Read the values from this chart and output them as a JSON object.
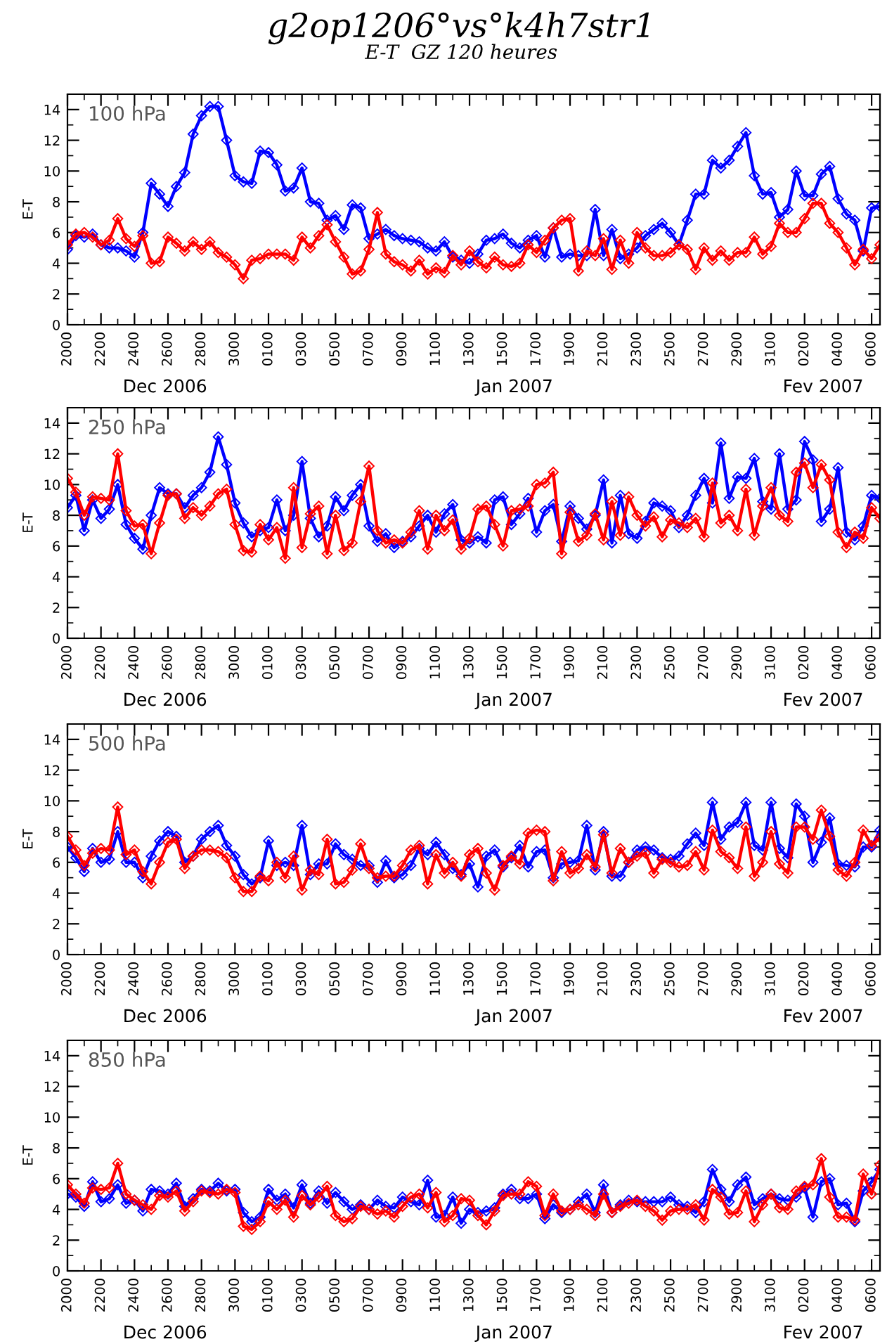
{
  "chart_data": [
    {
      "type": "line",
      "title": "g2op1206°vs°k4h7str1",
      "subtitle": "E-T  GZ 120 heures",
      "ylabel": "E-T",
      "annotations": [
        "100 hPa",
        "Dec 2006",
        "Jan 2007",
        "Fev 2007"
      ],
      "marker": "diamond",
      "grid": false,
      "ylim": [
        0,
        15
      ],
      "yticks": [
        0,
        2,
        4,
        6,
        8,
        10,
        12,
        14
      ],
      "categories": [
        "2000",
        null,
        null,
        null,
        "2200",
        null,
        null,
        null,
        "2400",
        null,
        null,
        null,
        "2600",
        null,
        null,
        null,
        "2800",
        null,
        null,
        null,
        "3000",
        null,
        null,
        null,
        "0100",
        null,
        null,
        null,
        "0300",
        null,
        null,
        null,
        "0500",
        null,
        null,
        null,
        "0700",
        null,
        null,
        null,
        "0900",
        null,
        null,
        null,
        "1100",
        null,
        null,
        null,
        "1300",
        null,
        null,
        null,
        "1500",
        null,
        null,
        null,
        "1700",
        null,
        null,
        null,
        "1900",
        null,
        null,
        null,
        "2100",
        null,
        null,
        null,
        "2300",
        null,
        null,
        null,
        "2500",
        null,
        null,
        null,
        "2700",
        null,
        null,
        null,
        "2900",
        null,
        null,
        null,
        "3100",
        null,
        null,
        null,
        "0200",
        null,
        null,
        null,
        "0400",
        null,
        null,
        null,
        "0600",
        null
      ],
      "series": [
        {
          "color": "#0000ff",
          "values": [
            4.9,
            5.8,
            5.7,
            5.9,
            5.2,
            5.0,
            5.0,
            4.8,
            4.4,
            6.0,
            9.2,
            8.5,
            7.7,
            9.0,
            9.9,
            12.4,
            13.6,
            14.2,
            14.2,
            12.0,
            9.7,
            9.3,
            9.2,
            11.3,
            11.2,
            10.4,
            8.7,
            8.9,
            10.2,
            8.0,
            7.9,
            6.8,
            7.1,
            6.2,
            7.8,
            7.6,
            5.6,
            5.9,
            6.2,
            5.8,
            5.6,
            5.5,
            5.4,
            5.0,
            4.8,
            5.4,
            4.4,
            4.2,
            4.0,
            4.6,
            5.5,
            5.6,
            5.9,
            5.3,
            5.0,
            5.5,
            5.8,
            4.4,
            6.3,
            4.4,
            4.6,
            4.5,
            4.5,
            7.5,
            4.5,
            6.2,
            4.3,
            4.6,
            5.0,
            5.8,
            6.2,
            6.6,
            6.0,
            5.2,
            6.8,
            8.5,
            8.5,
            10.7,
            10.2,
            10.7,
            11.6,
            12.5,
            9.7,
            8.5,
            8.6,
            7.0,
            7.5,
            10.0,
            8.4,
            8.4,
            9.8,
            10.3,
            8.2,
            7.2,
            6.8,
            4.8,
            7.6,
            7.7
          ]
        },
        {
          "color": "#ff0000",
          "values": [
            5.2,
            5.9,
            6.0,
            5.7,
            5.2,
            5.5,
            6.9,
            5.6,
            5.1,
            5.8,
            4.0,
            4.1,
            5.7,
            5.3,
            4.8,
            5.4,
            4.9,
            5.4,
            4.7,
            4.4,
            3.9,
            3.0,
            4.2,
            4.3,
            4.6,
            4.6,
            4.6,
            4.2,
            5.7,
            5.0,
            5.8,
            6.5,
            5.4,
            4.4,
            3.3,
            3.5,
            4.9,
            7.3,
            4.6,
            4.1,
            3.9,
            3.5,
            4.2,
            3.3,
            3.7,
            3.4,
            4.5,
            3.9,
            4.8,
            4.1,
            3.7,
            4.4,
            3.9,
            3.8,
            4.0,
            5.2,
            4.7,
            5.5,
            6.3,
            6.8,
            6.9,
            3.5,
            4.8,
            4.5,
            5.6,
            3.6,
            5.5,
            4.0,
            6.0,
            5.0,
            4.5,
            4.5,
            4.7,
            5.2,
            4.9,
            3.6,
            5.0,
            4.2,
            4.8,
            4.2,
            4.7,
            4.7,
            5.7,
            4.6,
            5.1,
            6.6,
            6.0,
            6.0,
            6.9,
            7.9,
            7.9,
            6.6,
            6.0,
            5.0,
            3.9,
            4.9,
            4.3,
            5.2
          ]
        }
      ]
    },
    {
      "type": "line",
      "ylabel": "E-T",
      "annotations": [
        "250 hPa",
        "Dec 2006",
        "Jan 2007",
        "Fev 2007"
      ],
      "marker": "diamond",
      "grid": false,
      "ylim": [
        0,
        15
      ],
      "yticks": [
        0,
        2,
        4,
        6,
        8,
        10,
        12,
        14
      ],
      "categories": [
        "2000",
        null,
        null,
        null,
        "2200",
        null,
        null,
        null,
        "2400",
        null,
        null,
        null,
        "2600",
        null,
        null,
        null,
        "2800",
        null,
        null,
        null,
        "3000",
        null,
        null,
        null,
        "0100",
        null,
        null,
        null,
        "0300",
        null,
        null,
        null,
        "0500",
        null,
        null,
        null,
        "0700",
        null,
        null,
        null,
        "0900",
        null,
        null,
        null,
        "1100",
        null,
        null,
        null,
        "1300",
        null,
        null,
        null,
        "1500",
        null,
        null,
        null,
        "1700",
        null,
        null,
        null,
        "1900",
        null,
        null,
        null,
        "2100",
        null,
        null,
        null,
        "2300",
        null,
        null,
        null,
        "2500",
        null,
        null,
        null,
        "2700",
        null,
        null,
        null,
        "2900",
        null,
        null,
        null,
        "3100",
        null,
        null,
        null,
        "0200",
        null,
        null,
        null,
        "0400",
        null,
        null,
        null,
        "0600",
        null
      ],
      "series": [
        {
          "color": "#0000ff",
          "values": [
            8.5,
            9.3,
            7.0,
            9.0,
            7.8,
            8.4,
            10.0,
            7.4,
            6.5,
            5.8,
            8.0,
            9.8,
            9.4,
            9.4,
            8.5,
            9.3,
            9.8,
            10.8,
            13.1,
            11.3,
            8.8,
            7.5,
            6.6,
            7.0,
            7.2,
            9.0,
            7.0,
            8.0,
            11.5,
            7.8,
            6.6,
            7.3,
            9.2,
            8.3,
            9.3,
            10.0,
            7.3,
            6.3,
            6.8,
            5.9,
            6.3,
            6.6,
            7.3,
            8.0,
            6.9,
            8.1,
            8.7,
            6.4,
            6.2,
            6.6,
            6.2,
            9.0,
            9.2,
            7.4,
            8.1,
            9.1,
            6.9,
            8.3,
            8.7,
            6.3,
            8.6,
            7.8,
            7.1,
            8.0,
            10.3,
            6.2,
            9.3,
            6.8,
            6.5,
            7.6,
            8.8,
            8.6,
            8.3,
            7.2,
            8.0,
            9.3,
            10.4,
            8.8,
            12.7,
            9.1,
            10.5,
            10.4,
            11.7,
            8.9,
            8.4,
            12.0,
            8.4,
            9.0,
            12.8,
            11.6,
            7.6,
            8.4,
            11.1,
            6.9,
            6.4,
            7.3,
            9.3,
            9.1
          ]
        },
        {
          "color": "#ff0000",
          "values": [
            10.4,
            9.5,
            8.0,
            9.2,
            9.1,
            9.0,
            12.0,
            8.3,
            7.3,
            7.4,
            5.5,
            7.5,
            9.3,
            9.4,
            7.8,
            8.5,
            8.0,
            8.6,
            9.4,
            9.7,
            7.4,
            5.7,
            5.6,
            7.4,
            6.4,
            7.2,
            5.2,
            9.8,
            5.9,
            8.1,
            8.6,
            5.5,
            8.0,
            5.7,
            6.2,
            8.9,
            11.2,
            7.0,
            6.2,
            6.4,
            6.2,
            6.9,
            8.3,
            5.8,
            8.0,
            7.0,
            7.7,
            5.8,
            6.5,
            8.4,
            8.6,
            7.4,
            6.0,
            8.3,
            8.4,
            8.6,
            10.0,
            10.1,
            10.8,
            5.5,
            8.2,
            6.3,
            6.7,
            8.1,
            6.4,
            8.9,
            6.7,
            9.2,
            8.0,
            7.3,
            7.9,
            6.6,
            7.7,
            7.5,
            7.2,
            7.8,
            6.6,
            10.1,
            7.5,
            8.0,
            7.0,
            9.7,
            6.7,
            8.6,
            9.8,
            8.0,
            7.6,
            10.8,
            11.4,
            9.8,
            11.3,
            10.3,
            6.9,
            5.9,
            6.9,
            6.5,
            8.5,
            7.8
          ]
        }
      ]
    },
    {
      "type": "line",
      "ylabel": "E-T",
      "annotations": [
        "500 hPa",
        "Dec 2006",
        "Jan 2007",
        "Fev 2007"
      ],
      "marker": "diamond",
      "grid": false,
      "ylim": [
        0,
        15
      ],
      "yticks": [
        0,
        2,
        4,
        6,
        8,
        10,
        12,
        14
      ],
      "categories": [
        "2000",
        null,
        null,
        null,
        "2200",
        null,
        null,
        null,
        "2400",
        null,
        null,
        null,
        "2600",
        null,
        null,
        null,
        "2800",
        null,
        null,
        null,
        "3000",
        null,
        null,
        null,
        "0100",
        null,
        null,
        null,
        "0300",
        null,
        null,
        null,
        "0500",
        null,
        null,
        null,
        "0700",
        null,
        null,
        null,
        "0900",
        null,
        null,
        null,
        "1100",
        null,
        null,
        null,
        "1300",
        null,
        null,
        null,
        "1500",
        null,
        null,
        null,
        "1700",
        null,
        null,
        null,
        "1900",
        null,
        null,
        null,
        "2100",
        null,
        null,
        null,
        "2300",
        null,
        null,
        null,
        "2500",
        null,
        null,
        null,
        "2700",
        null,
        null,
        null,
        "2900",
        null,
        null,
        null,
        "3100",
        null,
        null,
        null,
        "0200",
        null,
        null,
        null,
        "0400",
        null,
        null,
        null,
        "0600",
        null
      ],
      "series": [
        {
          "color": "#0000ff",
          "values": [
            7.0,
            6.3,
            5.4,
            6.9,
            6.0,
            6.2,
            8.0,
            6.0,
            6.0,
            5.0,
            6.4,
            7.4,
            8.0,
            7.7,
            6.0,
            6.4,
            7.5,
            8.0,
            8.4,
            7.1,
            6.4,
            5.2,
            4.6,
            5.0,
            7.4,
            5.8,
            6.0,
            5.8,
            8.4,
            5.2,
            5.9,
            5.9,
            7.2,
            6.5,
            6.2,
            5.8,
            5.8,
            4.7,
            6.1,
            5.0,
            5.2,
            5.8,
            6.9,
            6.5,
            7.3,
            6.5,
            5.6,
            5.2,
            5.9,
            4.4,
            6.4,
            6.8,
            5.7,
            6.3,
            7.1,
            5.7,
            6.7,
            6.8,
            5.0,
            5.9,
            6.0,
            6.1,
            8.4,
            5.5,
            8.0,
            5.1,
            5.1,
            6.0,
            6.8,
            7.0,
            6.8,
            6.3,
            6.2,
            6.4,
            7.2,
            7.9,
            7.1,
            9.9,
            7.5,
            8.3,
            8.6,
            9.9,
            7.1,
            6.8,
            9.9,
            6.9,
            6.3,
            9.8,
            9.0,
            6.0,
            7.3,
            8.9,
            5.9,
            5.8,
            5.7,
            7.0,
            7.0,
            8.1
          ]
        },
        {
          "color": "#ff0000",
          "values": [
            7.7,
            6.8,
            5.8,
            6.6,
            6.9,
            6.8,
            9.6,
            6.5,
            6.8,
            5.4,
            4.6,
            6.0,
            7.3,
            7.5,
            5.6,
            6.4,
            6.8,
            6.8,
            6.7,
            6.3,
            5.0,
            4.1,
            4.1,
            5.1,
            4.8,
            6.0,
            5.0,
            6.4,
            4.2,
            5.5,
            5.2,
            7.5,
            4.6,
            4.7,
            5.5,
            7.2,
            5.6,
            5.0,
            5.1,
            5.1,
            5.8,
            6.8,
            7.1,
            4.6,
            6.5,
            5.3,
            6.0,
            5.1,
            6.5,
            6.9,
            5.3,
            4.2,
            5.8,
            6.4,
            5.9,
            7.9,
            8.1,
            8.0,
            4.8,
            6.7,
            5.3,
            5.6,
            6.5,
            5.7,
            7.8,
            5.3,
            6.9,
            6.0,
            6.4,
            6.6,
            5.3,
            6.2,
            6.0,
            5.7,
            5.8,
            6.7,
            5.5,
            8.1,
            6.7,
            6.3,
            5.6,
            8.3,
            5.1,
            6.0,
            8.0,
            5.9,
            5.3,
            8.3,
            8.3,
            7.5,
            9.4,
            7.7,
            5.5,
            5.1,
            6.0,
            8.1,
            7.1,
            7.6
          ]
        }
      ]
    },
    {
      "type": "line",
      "ylabel": "E-T",
      "annotations": [
        "850 hPa",
        "Dec 2006",
        "Jan 2007",
        "Fev 2007"
      ],
      "marker": "diamond",
      "grid": false,
      "ylim": [
        0,
        15
      ],
      "yticks": [
        0,
        2,
        4,
        6,
        8,
        10,
        12,
        14
      ],
      "categories": [
        "2000",
        null,
        null,
        null,
        "2200",
        null,
        null,
        null,
        "2400",
        null,
        null,
        null,
        "2600",
        null,
        null,
        null,
        "2800",
        null,
        null,
        null,
        "3000",
        null,
        null,
        null,
        "0100",
        null,
        null,
        null,
        "0300",
        null,
        null,
        null,
        "0500",
        null,
        null,
        null,
        "0700",
        null,
        null,
        null,
        "0900",
        null,
        null,
        null,
        "1100",
        null,
        null,
        null,
        "1300",
        null,
        null,
        null,
        "1500",
        null,
        null,
        null,
        "1700",
        null,
        null,
        null,
        "1900",
        null,
        null,
        null,
        "2100",
        null,
        null,
        null,
        "2300",
        null,
        null,
        null,
        "2500",
        null,
        null,
        null,
        "2700",
        null,
        null,
        null,
        "2900",
        null,
        null,
        null,
        "3100",
        null,
        null,
        null,
        "0200",
        null,
        null,
        null,
        "0400",
        null,
        null,
        null,
        "0600",
        null
      ],
      "series": [
        {
          "color": "#0000ff",
          "values": [
            5.0,
            4.8,
            4.2,
            5.8,
            4.5,
            4.7,
            5.6,
            4.4,
            4.6,
            3.9,
            5.3,
            5.2,
            5.0,
            5.7,
            4.2,
            4.7,
            5.3,
            5.2,
            5.7,
            5.2,
            5.3,
            3.8,
            3.2,
            3.5,
            5.3,
            4.6,
            5.0,
            4.1,
            5.6,
            4.4,
            5.2,
            4.4,
            5.1,
            4.5,
            4.0,
            4.3,
            4.0,
            4.6,
            4.2,
            4.1,
            4.8,
            4.5,
            4.3,
            5.9,
            3.5,
            3.6,
            4.8,
            3.1,
            4.0,
            3.8,
            3.9,
            4.1,
            5.0,
            5.3,
            4.7,
            4.7,
            5.0,
            3.4,
            4.3,
            3.8,
            4.0,
            4.5,
            5.0,
            3.8,
            5.6,
            3.8,
            4.3,
            4.6,
            4.5,
            4.5,
            4.5,
            4.5,
            4.8,
            4.3,
            4.2,
            3.8,
            4.5,
            6.6,
            5.3,
            4.5,
            5.6,
            6.1,
            4.3,
            4.7,
            5.0,
            4.7,
            4.6,
            4.8,
            5.4,
            3.5,
            5.8,
            6.0,
            4.3,
            4.4,
            3.2,
            5.2,
            5.8,
            6.6
          ]
        },
        {
          "color": "#ff0000",
          "values": [
            5.6,
            5.0,
            4.4,
            5.4,
            5.3,
            5.4,
            7.0,
            5.0,
            4.6,
            4.3,
            4.0,
            4.9,
            4.8,
            5.2,
            3.9,
            4.5,
            5.2,
            5.1,
            5.0,
            5.3,
            5.1,
            2.9,
            2.7,
            3.2,
            4.5,
            4.0,
            4.6,
            3.5,
            4.9,
            4.3,
            4.8,
            5.5,
            3.6,
            3.2,
            3.4,
            4.2,
            4.0,
            3.7,
            3.9,
            3.5,
            4.2,
            4.8,
            5.0,
            4.1,
            5.1,
            3.2,
            3.6,
            4.7,
            4.6,
            3.6,
            3.0,
            3.9,
            4.9,
            5.0,
            5.0,
            5.8,
            5.5,
            3.6,
            5.0,
            3.9,
            4.0,
            4.3,
            4.0,
            3.6,
            5.0,
            3.8,
            4.2,
            4.4,
            4.6,
            4.2,
            3.9,
            3.3,
            3.9,
            4.0,
            4.0,
            4.3,
            3.3,
            5.3,
            4.8,
            3.7,
            3.8,
            5.2,
            3.2,
            4.3,
            5.0,
            4.1,
            4.0,
            5.2,
            5.5,
            5.6,
            7.3,
            4.8,
            3.5,
            3.5,
            3.3,
            6.3,
            5.0,
            6.9
          ]
        }
      ]
    }
  ]
}
